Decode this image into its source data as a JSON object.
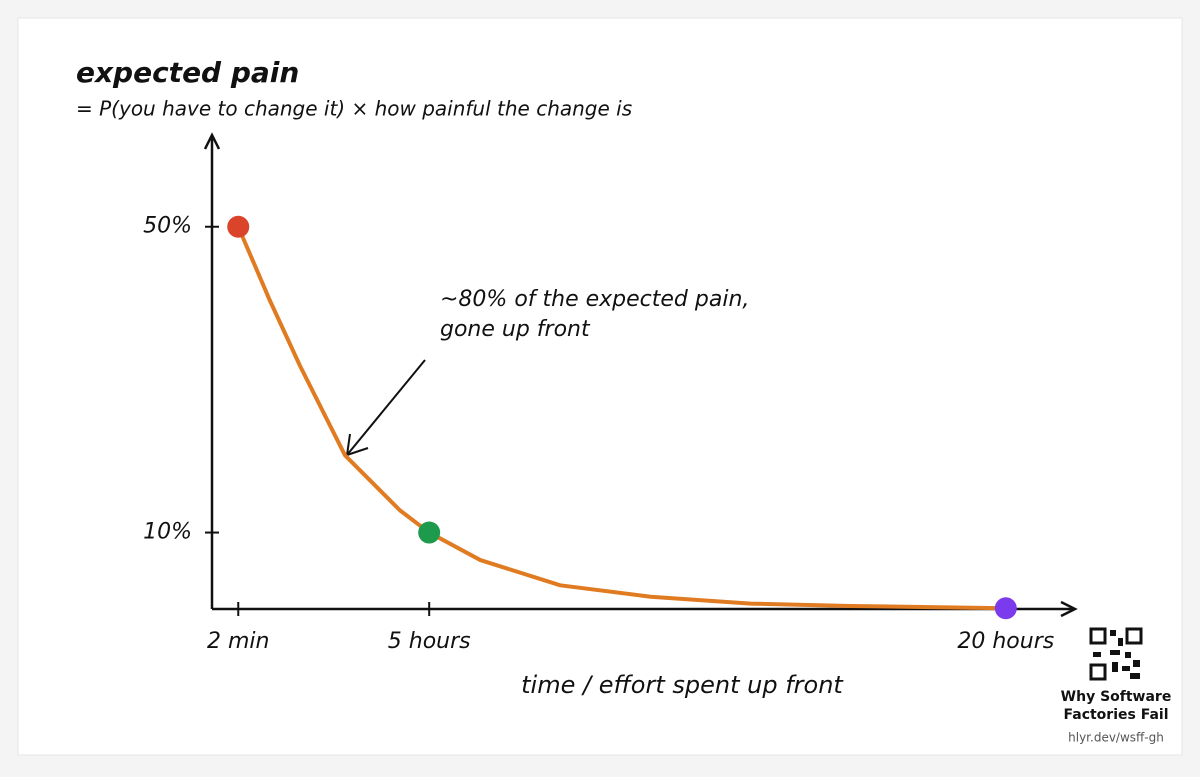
{
  "chart_data": {
    "type": "line",
    "title": "expected pain",
    "subtitle": "= P(you have to change it) × how painful the change is",
    "xlabel": "time / effort spent up front",
    "annotation": [
      "~80% of the expected pain,",
      "gone up front"
    ],
    "xlim": [
      -0.65,
      21.8
    ],
    "ylim": [
      0,
      62
    ],
    "xticks": [
      {
        "value": 0.033,
        "label": "2 min"
      },
      {
        "value": 5,
        "label": "5 hours"
      },
      {
        "value": 20,
        "label": "20 hours"
      }
    ],
    "yticks": [
      {
        "value": 50,
        "label": "50%"
      },
      {
        "value": 10,
        "label": "10%"
      }
    ],
    "series": [
      {
        "color": "#e07b22",
        "x": [
          0.033,
          0.86,
          1.64,
          2.81,
          4.24,
          5,
          6.33,
          8.41,
          10.76,
          13.36,
          15.96,
          20
        ],
        "values": [
          50,
          40.3,
          31.8,
          20.1,
          12.9,
          10,
          6.4,
          3.1,
          1.6,
          0.7,
          0.4,
          0.1
        ]
      }
    ],
    "points": {
      "x": [
        0.033,
        5,
        20
      ],
      "values": [
        50,
        10,
        0.1
      ],
      "colors": [
        "#d9442b",
        "#1e9a4c",
        "#7c3aed"
      ]
    }
  },
  "branding": {
    "title": [
      "Why Software",
      "Factories Fail"
    ],
    "url": "hlyr.dev/wsff-gh"
  }
}
